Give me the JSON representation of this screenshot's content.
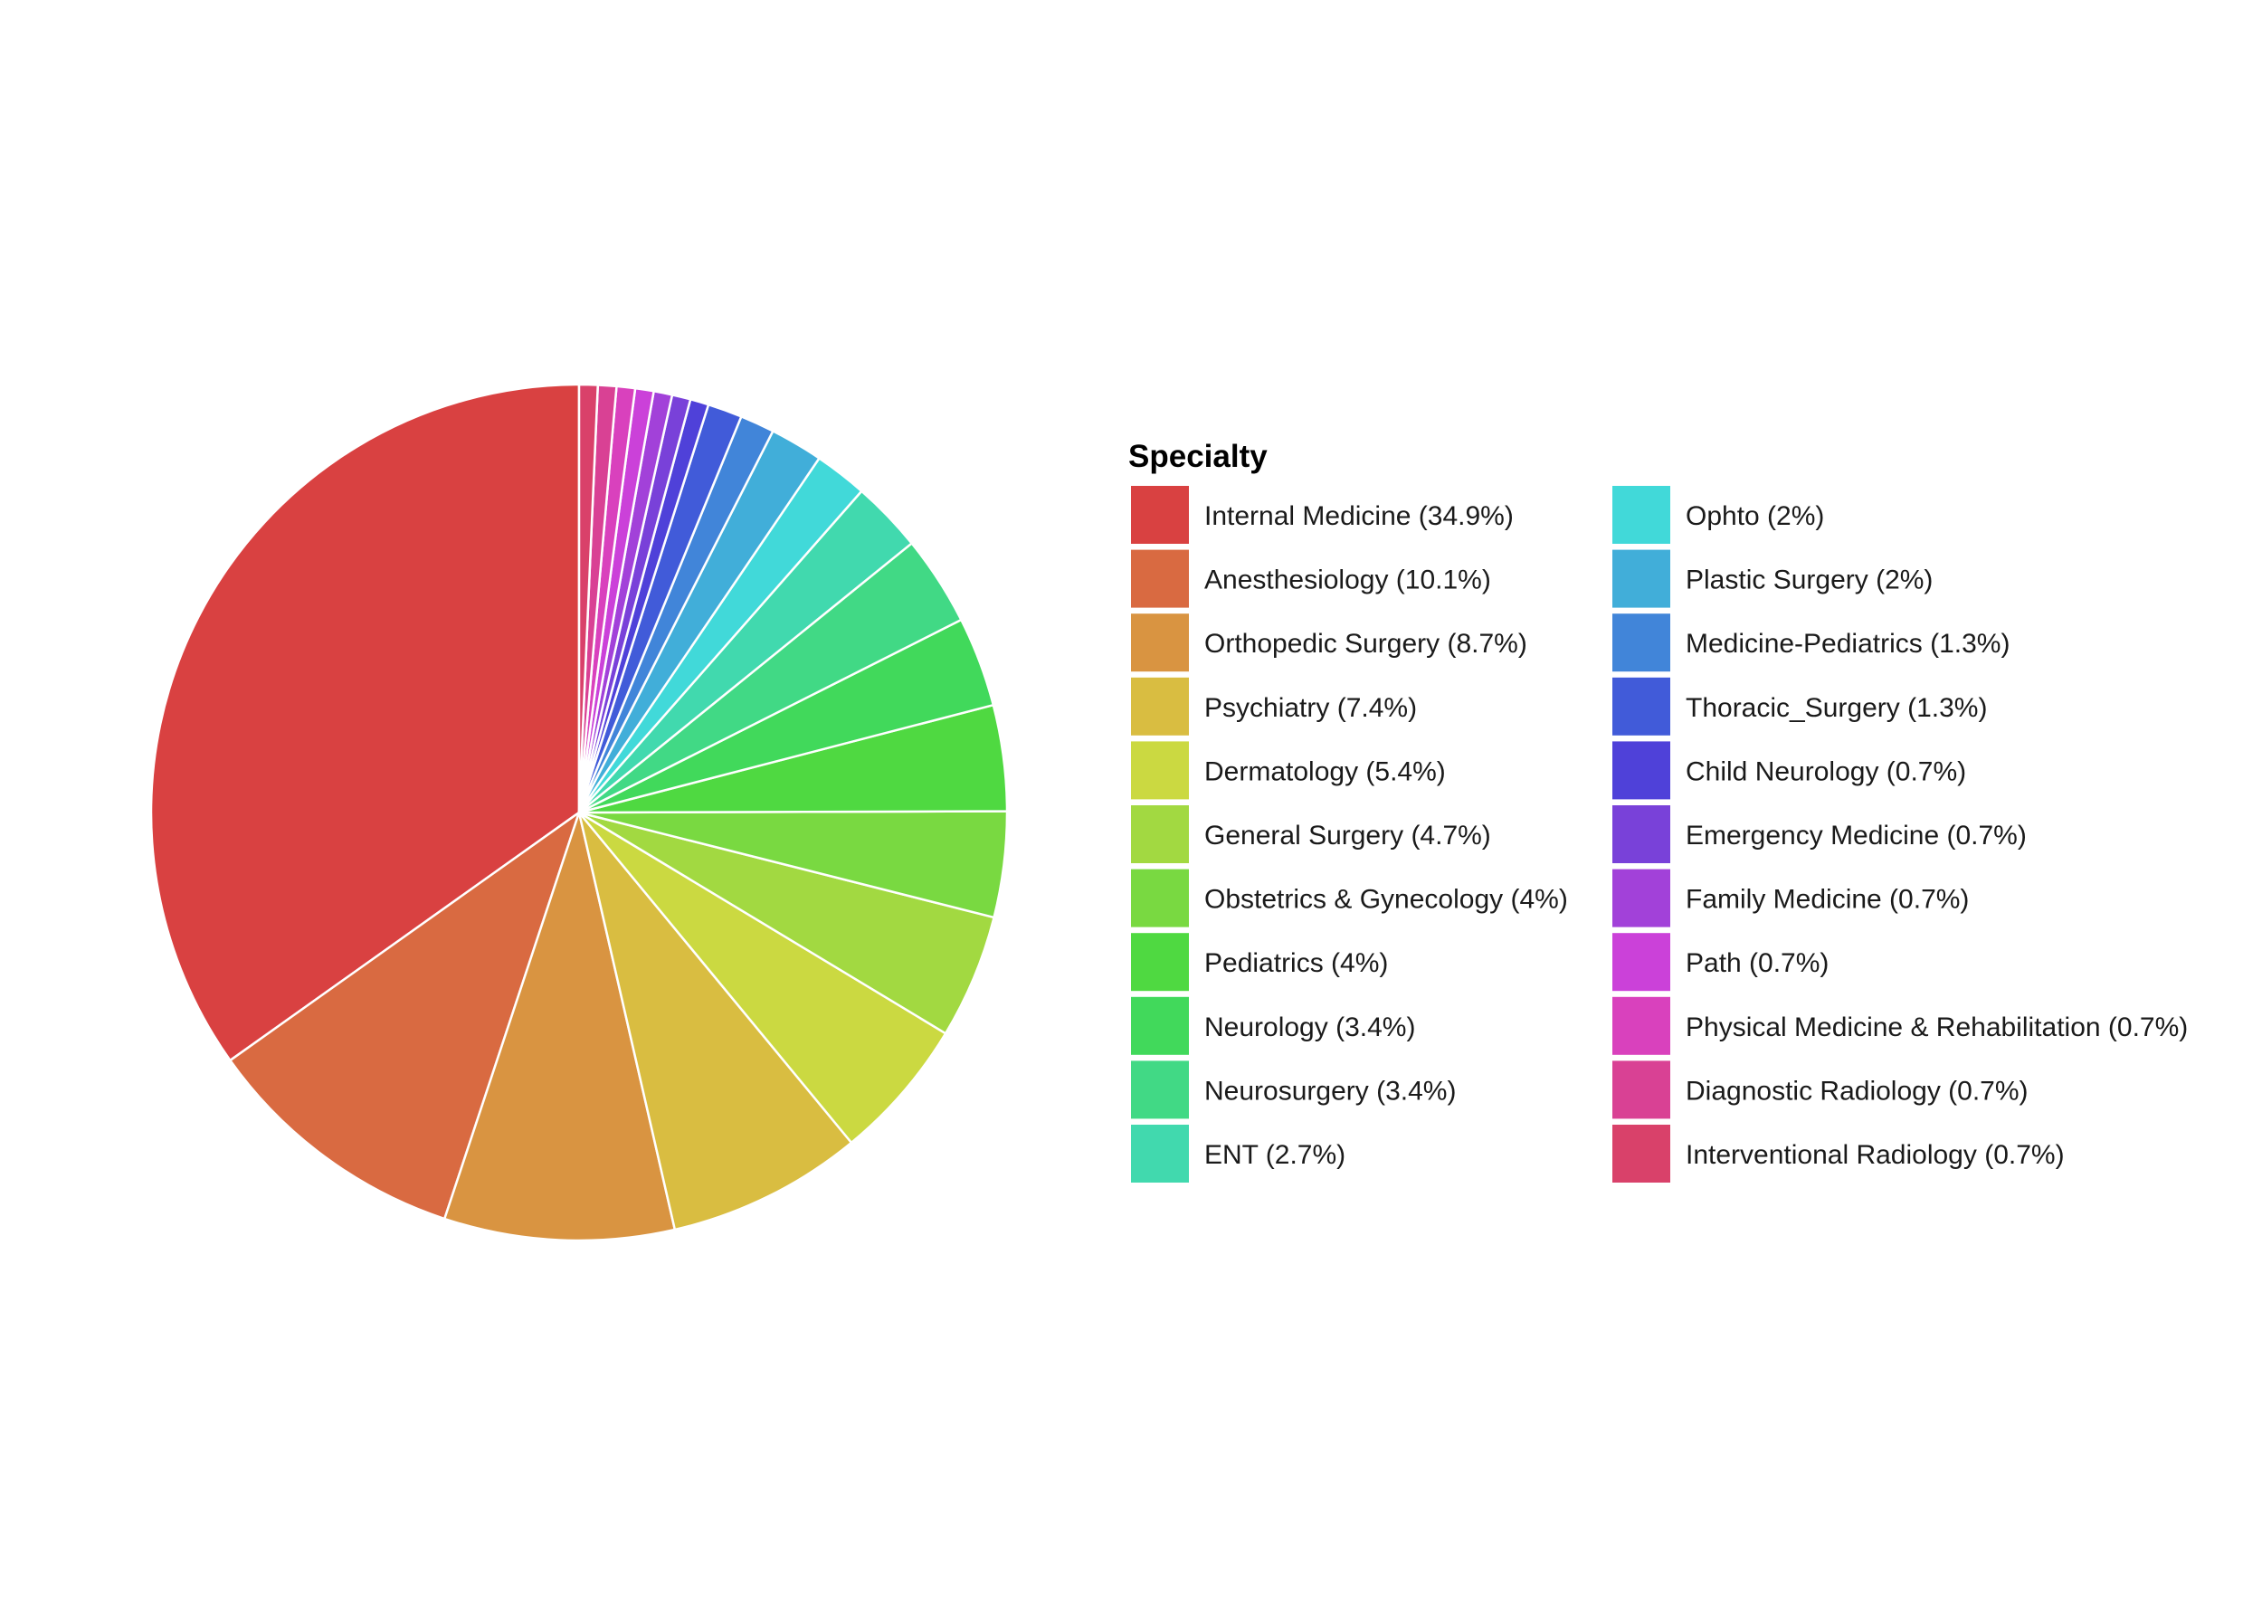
{
  "chart_data": {
    "type": "pie",
    "legend_title": "Specialty",
    "legend_position": "right",
    "start": "12 o'clock, counter-clockwise",
    "slices": [
      {
        "label": "Internal Medicine (34.9%)",
        "value": 34.9,
        "color": "#D94141"
      },
      {
        "label": "Anesthesiology (10.1%)",
        "value": 10.1,
        "color": "#D96A41"
      },
      {
        "label": "Orthopedic Surgery (8.7%)",
        "value": 8.7,
        "color": "#D99441"
      },
      {
        "label": "Psychiatry (7.4%)",
        "value": 7.4,
        "color": "#D9BD41"
      },
      {
        "label": "Dermatology (5.4%)",
        "value": 5.4,
        "color": "#CBD941"
      },
      {
        "label": "General Surgery (4.7%)",
        "value": 4.7,
        "color": "#A2D941"
      },
      {
        "label": "Obstetrics & Gynecology (4%)",
        "value": 4.0,
        "color": "#79D941"
      },
      {
        "label": "Pediatrics (4%)",
        "value": 4.0,
        "color": "#4FD941"
      },
      {
        "label": "Neurology (3.4%)",
        "value": 3.4,
        "color": "#41D95B"
      },
      {
        "label": "Neurosurgery (3.4%)",
        "value": 3.4,
        "color": "#41D985"
      },
      {
        "label": "ENT (2.7%)",
        "value": 2.7,
        "color": "#41D9AE"
      },
      {
        "label": "Ophto (2%)",
        "value": 2.0,
        "color": "#41D9D9"
      },
      {
        "label": "Plastic Surgery (2%)",
        "value": 2.0,
        "color": "#41AED9"
      },
      {
        "label": "Medicine-Pediatrics (1.3%)",
        "value": 1.3,
        "color": "#4185D9"
      },
      {
        "label": "Thoracic_Surgery (1.3%)",
        "value": 1.3,
        "color": "#415BD9"
      },
      {
        "label": "Child Neurology (0.7%)",
        "value": 0.7,
        "color": "#4F41D9"
      },
      {
        "label": "Emergency Medicine (0.7%)",
        "value": 0.7,
        "color": "#7941D9"
      },
      {
        "label": "Family Medicine (0.7%)",
        "value": 0.7,
        "color": "#A241D9"
      },
      {
        "label": "Path (0.7%)",
        "value": 0.7,
        "color": "#CB41D9"
      },
      {
        "label": "Physical Medicine & Rehabilitation (0.7%)",
        "value": 0.7,
        "color": "#D941BD"
      },
      {
        "label": "Diagnostic Radiology (0.7%)",
        "value": 0.7,
        "color": "#D94194"
      },
      {
        "label": "Interventional Radiology (0.7%)",
        "value": 0.7,
        "color": "#D9416A"
      }
    ]
  }
}
